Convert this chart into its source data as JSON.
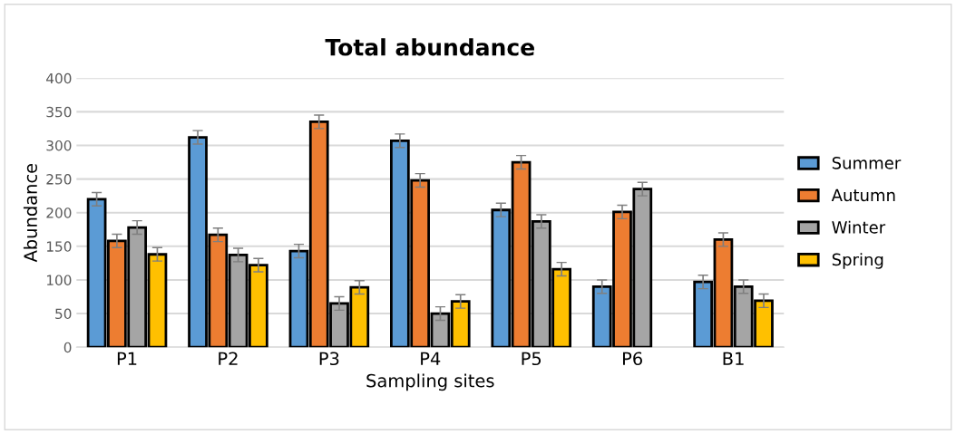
{
  "chart_data": {
    "type": "bar",
    "title": "Total abundance",
    "xlabel": "Sampling sites",
    "ylabel": "Abundance",
    "categories": [
      "P1",
      "P2",
      "P3",
      "P4",
      "P5",
      "P6",
      "B1"
    ],
    "series": [
      {
        "name": "Summer",
        "color": "#5b9bd5",
        "values": [
          220,
          312,
          143,
          307,
          204,
          90,
          97
        ],
        "errors": [
          10,
          10,
          10,
          10,
          10,
          10,
          10
        ]
      },
      {
        "name": "Autumn",
        "color": "#ed7d31",
        "values": [
          158,
          167,
          335,
          248,
          275,
          201,
          160
        ],
        "errors": [
          10,
          10,
          10,
          10,
          10,
          10,
          10
        ]
      },
      {
        "name": "Winter",
        "color": "#a5a5a5",
        "values": [
          178,
          137,
          65,
          50,
          187,
          235,
          90
        ],
        "errors": [
          10,
          10,
          10,
          10,
          10,
          10,
          10
        ]
      },
      {
        "name": "Spring",
        "color": "#ffc000",
        "values": [
          138,
          122,
          89,
          68,
          116,
          null,
          69
        ],
        "errors": [
          10,
          10,
          10,
          10,
          10,
          null,
          10
        ]
      }
    ],
    "ylim": [
      0,
      400
    ],
    "yticks": [
      0,
      50,
      100,
      150,
      200,
      250,
      300,
      350,
      400
    ],
    "grid": "y",
    "legend": "right"
  }
}
